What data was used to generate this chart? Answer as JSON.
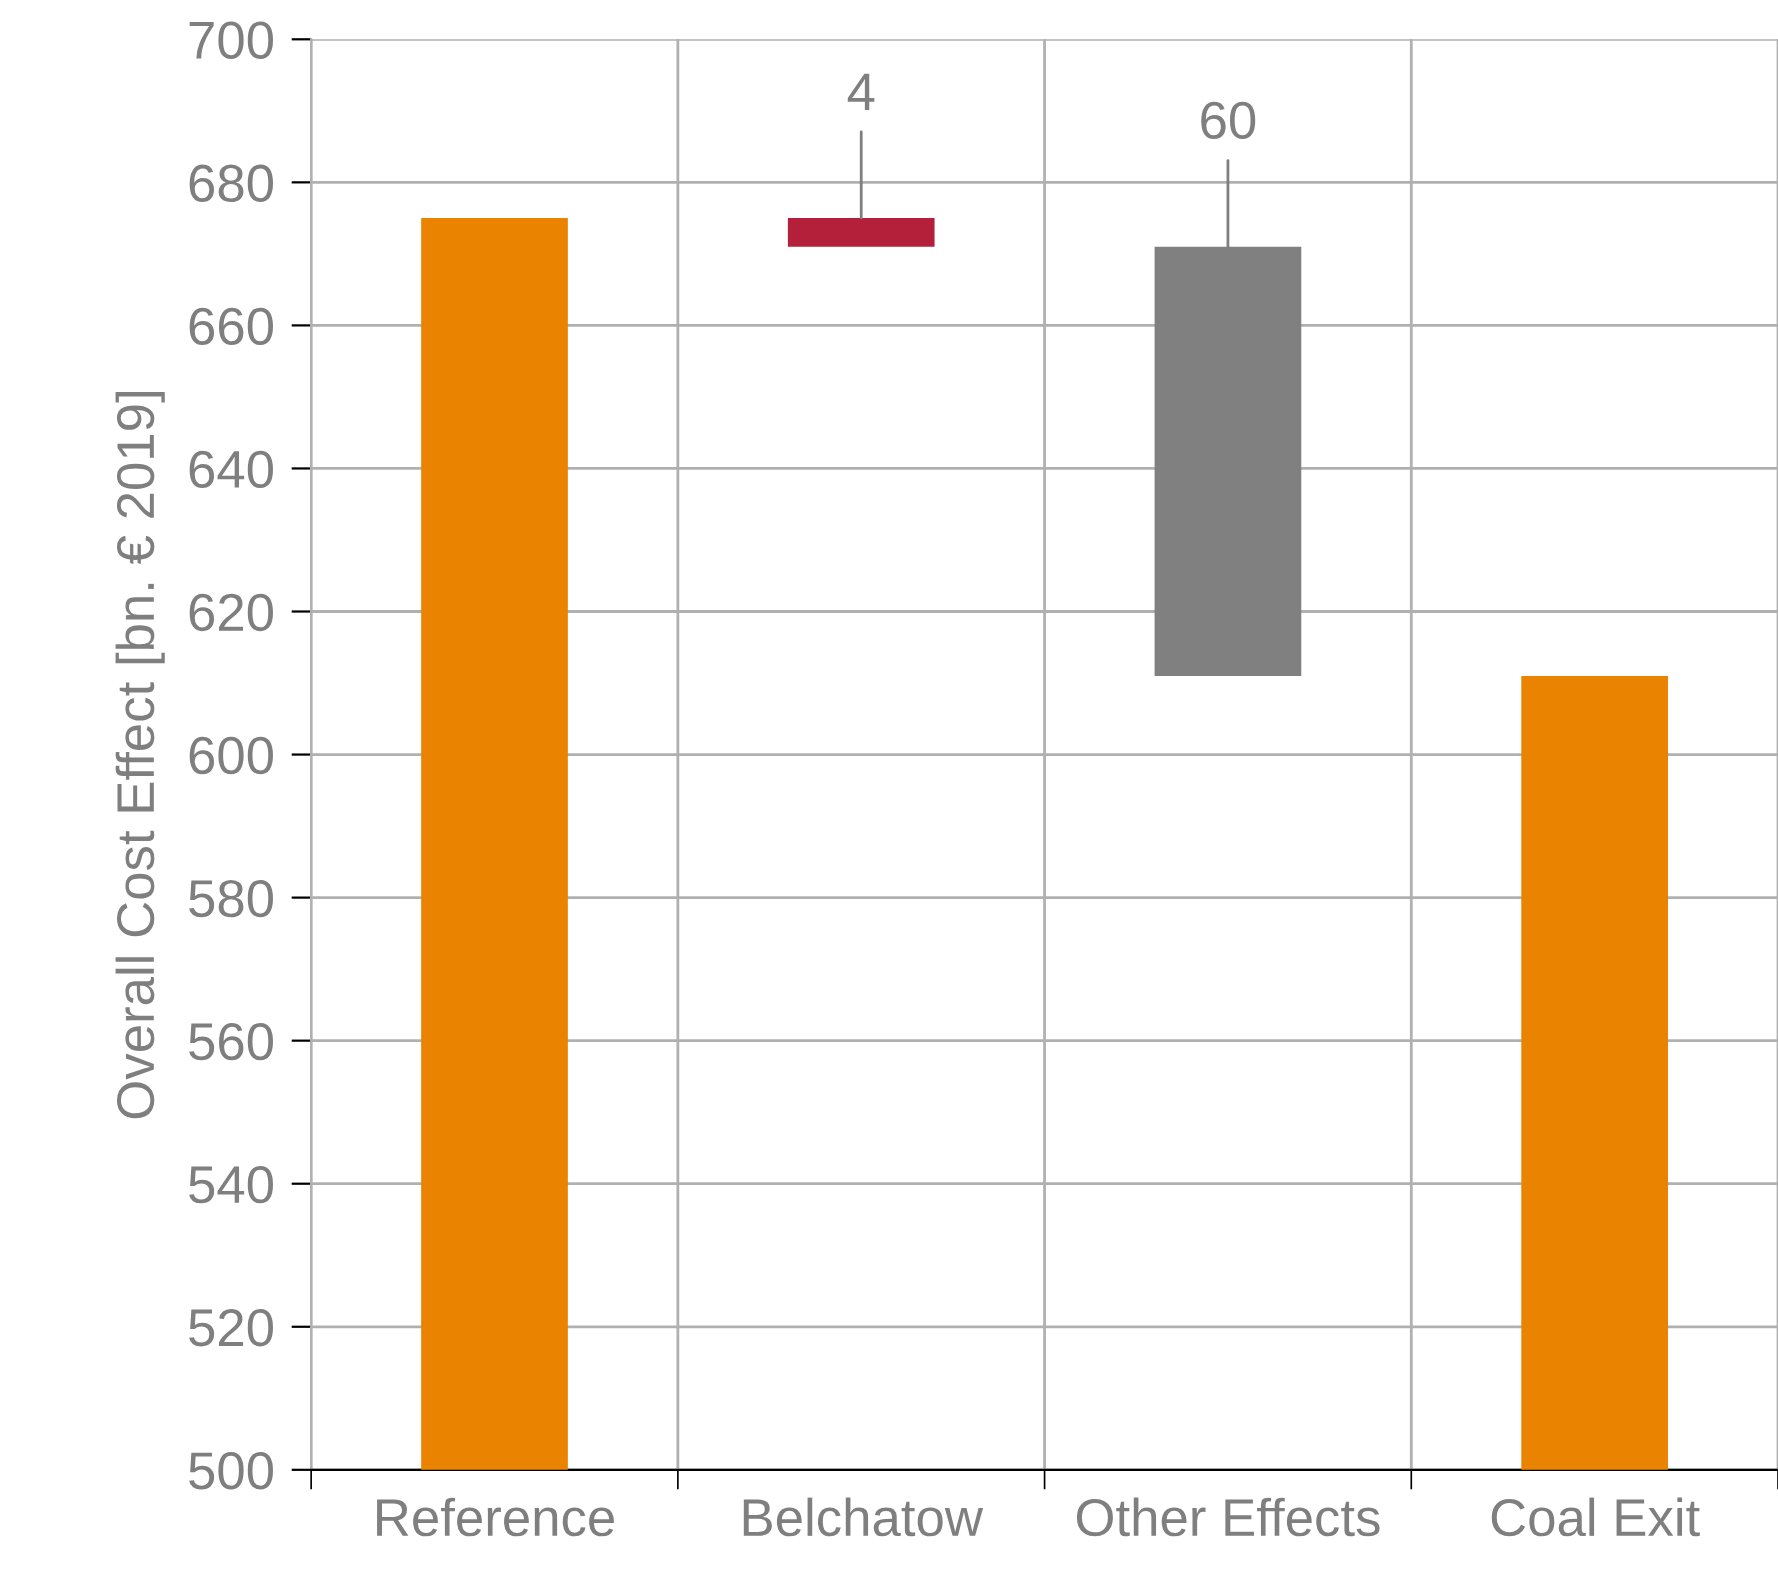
{
  "chart_data": {
    "type": "bar",
    "ylabel": "Overall Cost Effect [bn. € 2019]",
    "categories": [
      "Reference",
      "Belchatow",
      "Other Effects",
      "Coal Exit"
    ],
    "values": [
      675,
      4,
      60,
      611
    ],
    "base": [
      null,
      671,
      611,
      null
    ],
    "colors": [
      "#e98300",
      "#b41f3a",
      "#808080",
      "#e98300"
    ],
    "value_labels": [
      null,
      "4",
      "60",
      null
    ],
    "ylim": [
      500,
      700
    ],
    "yticks": [
      500,
      520,
      540,
      560,
      580,
      600,
      620,
      640,
      660,
      680,
      700
    ],
    "grid": true
  }
}
